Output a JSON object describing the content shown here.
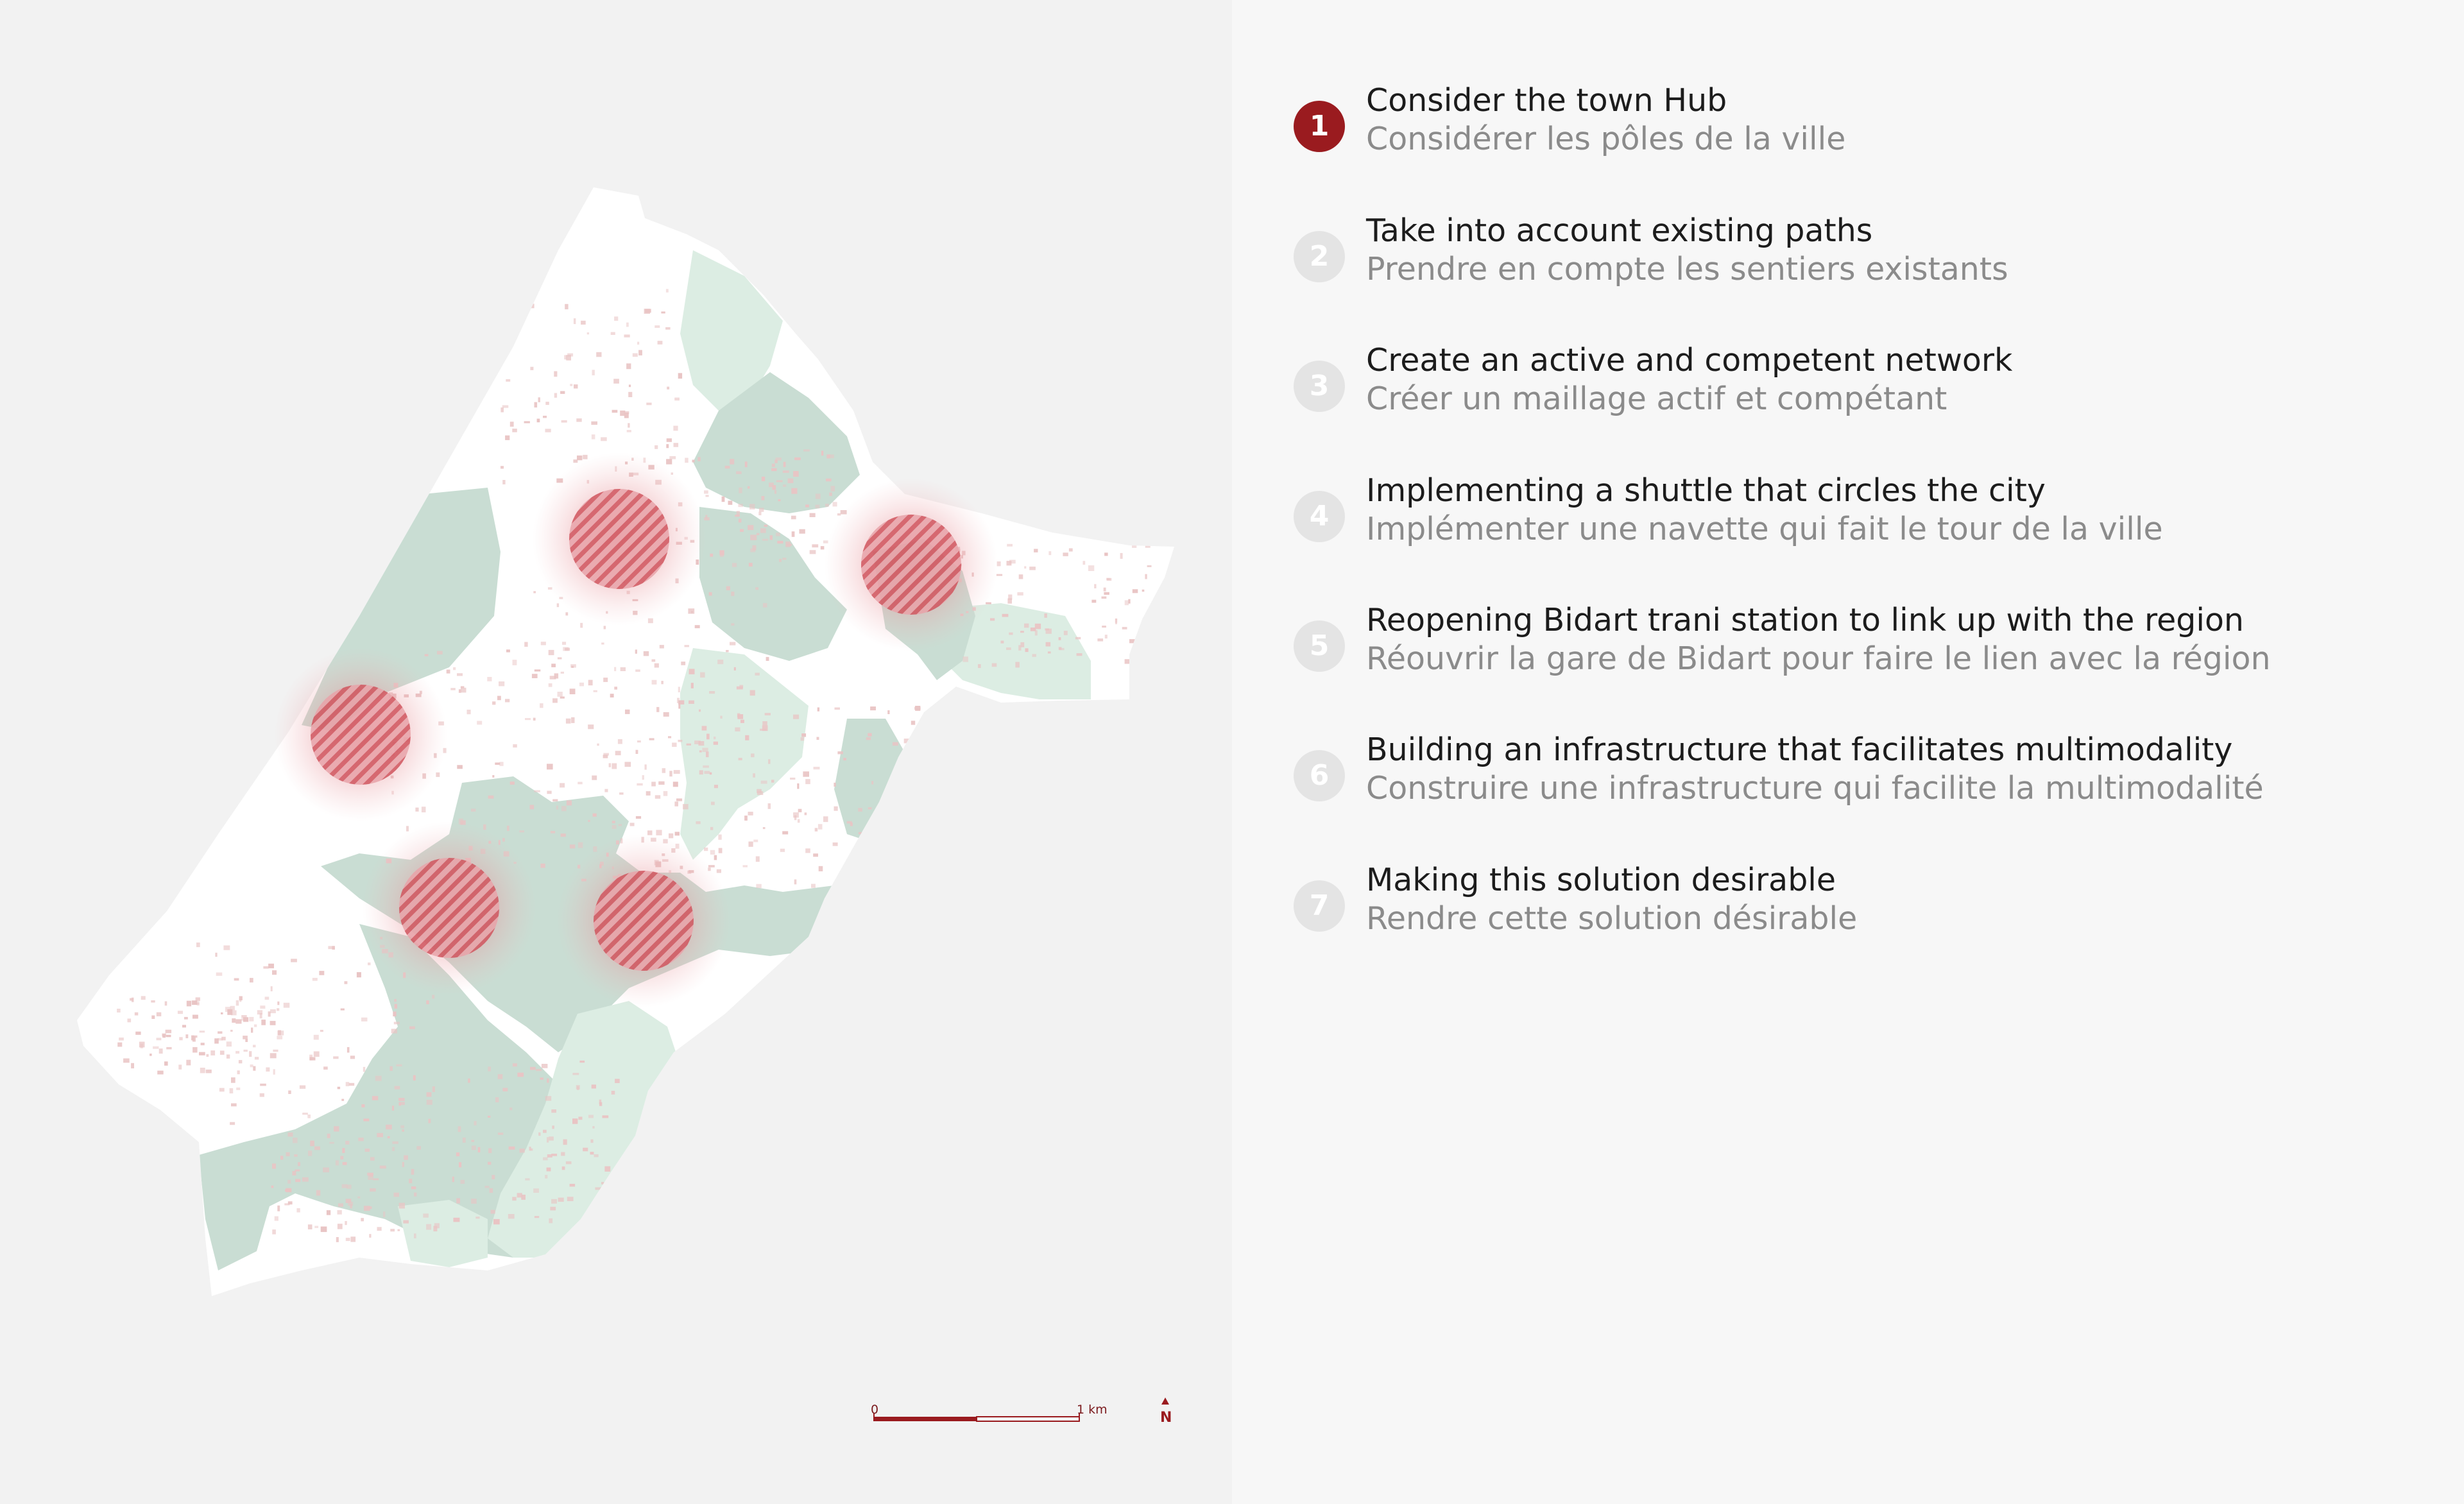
{
  "map": {
    "scale_bar": {
      "start_label": "0",
      "end_label": "1 km"
    },
    "north_arrow": {
      "label": "N"
    },
    "hub_count": 5,
    "colors": {
      "land": "#ffffff",
      "background": "#f2f2f2",
      "green_dark": "#c9ddd3",
      "green_light": "#dcede3",
      "buildings": "#e9c4c4",
      "hub": "#c83b45",
      "accent": "#9a1b1f"
    }
  },
  "steps": [
    {
      "number": "1",
      "title": "Consider the town Hub",
      "subtitle": "Considérer les pôles de la ville",
      "active": true
    },
    {
      "number": "2",
      "title": "Take into account existing paths",
      "subtitle": "Prendre en compte les sentiers existants",
      "active": false
    },
    {
      "number": "3",
      "title": "Create an active and competent network",
      "subtitle": "Créer un maillage actif et compétant",
      "active": false
    },
    {
      "number": "4",
      "title": "Implementing a shuttle that circles the city",
      "subtitle": "Implémenter  une navette qui fait le tour de la ville",
      "active": false
    },
    {
      "number": "5",
      "title": "Reopening Bidart trani station to link up with the region",
      "subtitle": "Réouvrir la gare de Bidart pour faire le lien avec la région",
      "active": false
    },
    {
      "number": "6",
      "title": "Building an infrastructure that facilitates multimodality",
      "subtitle": "Construire une infrastructure qui facilite la multimodalité",
      "active": false
    },
    {
      "number": "7",
      "title": "Making this solution desirable",
      "subtitle": "Rendre cette solution désirable",
      "active": false
    }
  ]
}
